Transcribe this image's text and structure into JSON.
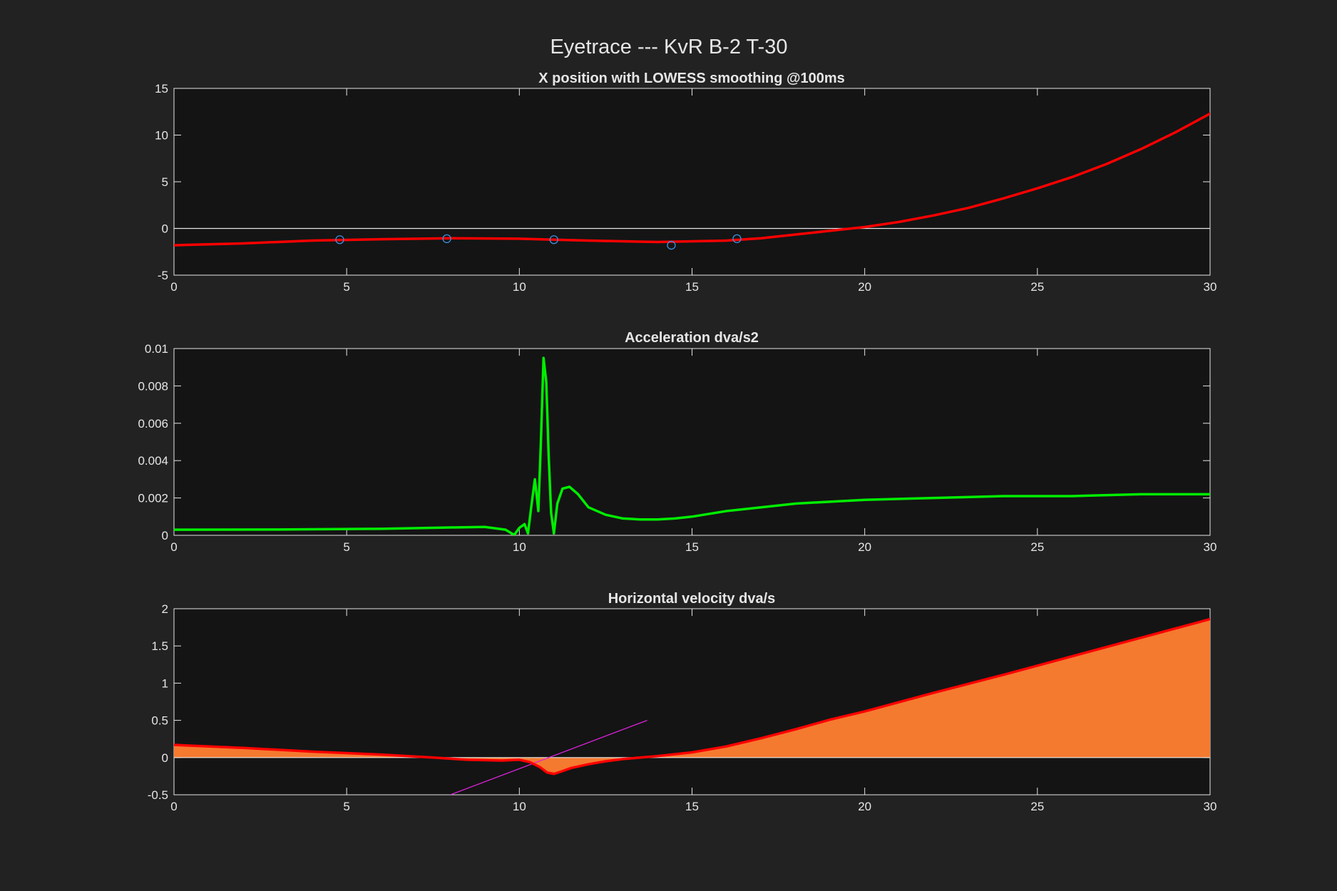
{
  "figure": {
    "title": "Eyetrace --- KvR B-2 T-30",
    "background": "#222222",
    "axes_background": "#141414",
    "text_color": "#e6e6e6"
  },
  "chart_data": [
    {
      "type": "line",
      "title": "X position with LOWESS smoothing @100ms",
      "xlabel": "",
      "ylabel": "",
      "xlim": [
        0,
        30
      ],
      "ylim": [
        -5,
        15
      ],
      "xticks": [
        0,
        5,
        10,
        15,
        20,
        25,
        30
      ],
      "yticks": [
        -5,
        0,
        5,
        10,
        15
      ],
      "zero_line": true,
      "grid": false,
      "series": [
        {
          "color": "#ff0000",
          "x": [
            0,
            2,
            4,
            6,
            8,
            10,
            12,
            14,
            16,
            17,
            18,
            19,
            20,
            21,
            22,
            23,
            24,
            25,
            26,
            27,
            28,
            29,
            30
          ],
          "y": [
            -1.8,
            -1.6,
            -1.3,
            -1.15,
            -1.05,
            -1.1,
            -1.3,
            -1.45,
            -1.3,
            -1.05,
            -0.65,
            -0.25,
            0.15,
            0.7,
            1.4,
            2.2,
            3.2,
            4.3,
            5.5,
            6.9,
            8.5,
            10.3,
            12.3
          ]
        }
      ],
      "markers": {
        "color": "#3d8fe0",
        "x": [
          4.8,
          7.9,
          11.0,
          14.4,
          16.3
        ],
        "y": [
          -1.2,
          -1.1,
          -1.2,
          -1.8,
          -1.1
        ]
      }
    },
    {
      "type": "line",
      "title": "Acceleration dva/s2",
      "xlabel": "",
      "ylabel": "",
      "xlim": [
        0,
        30
      ],
      "ylim": [
        0,
        0.01
      ],
      "xticks": [
        0,
        5,
        10,
        15,
        20,
        25,
        30
      ],
      "yticks": [
        0,
        0.002,
        0.004,
        0.006,
        0.008,
        0.01
      ],
      "grid": false,
      "series": [
        {
          "color": "#00ee00",
          "x": [
            0,
            3,
            6,
            8,
            9,
            9.6,
            9.85,
            10.0,
            10.15,
            10.25,
            10.35,
            10.45,
            10.55,
            10.62,
            10.7,
            10.78,
            10.85,
            10.92,
            11.0,
            11.1,
            11.25,
            11.45,
            11.7,
            12.0,
            12.5,
            13.0,
            13.5,
            14.0,
            14.5,
            15.0,
            16.0,
            17.0,
            18.0,
            19.0,
            20.0,
            22.0,
            24.0,
            26.0,
            28.0,
            30.0
          ],
          "y": [
            0.0003,
            0.00031,
            0.00035,
            0.00042,
            0.00045,
            0.0003,
            2e-05,
            0.0004,
            0.0006,
            0.0001,
            0.0016,
            0.003,
            0.0013,
            0.0048,
            0.0095,
            0.0082,
            0.0042,
            0.0012,
            0.0001,
            0.0017,
            0.0025,
            0.0026,
            0.0022,
            0.0015,
            0.0011,
            0.0009,
            0.00085,
            0.00085,
            0.0009,
            0.001,
            0.0013,
            0.0015,
            0.0017,
            0.0018,
            0.0019,
            0.002,
            0.0021,
            0.0021,
            0.0022,
            0.0022
          ]
        }
      ]
    },
    {
      "type": "area",
      "title": "Horizontal velocity dva/s",
      "xlabel": "",
      "ylabel": "",
      "xlim": [
        0,
        30
      ],
      "ylim": [
        -0.5,
        2
      ],
      "xticks": [
        0,
        5,
        10,
        15,
        20,
        25,
        30
      ],
      "yticks": [
        -0.5,
        0,
        0.5,
        1,
        1.5,
        2
      ],
      "zero_line": true,
      "grid": false,
      "series": [
        {
          "color": "#ff0000",
          "fill_color": "#f47a30",
          "x": [
            0,
            2,
            4,
            6,
            7.5,
            8.5,
            9.5,
            10.0,
            10.3,
            10.6,
            10.8,
            11.0,
            11.2,
            11.5,
            12.0,
            12.5,
            13.0,
            13.5,
            14.0,
            15.0,
            16.0,
            17.0,
            18.0,
            19.0,
            20.0,
            22.0,
            24.0,
            26.0,
            28.0,
            30.0
          ],
          "y": [
            0.17,
            0.13,
            0.08,
            0.04,
            0.0,
            -0.03,
            -0.04,
            -0.03,
            -0.06,
            -0.13,
            -0.2,
            -0.22,
            -0.19,
            -0.14,
            -0.09,
            -0.05,
            -0.02,
            0.0,
            0.02,
            0.07,
            0.15,
            0.26,
            0.38,
            0.51,
            0.62,
            0.87,
            1.11,
            1.36,
            1.61,
            1.86
          ]
        }
      ],
      "reference_line": {
        "color": "#dd22dd",
        "x": [
          8.0,
          13.7
        ],
        "y": [
          -0.5,
          0.5
        ]
      }
    }
  ]
}
